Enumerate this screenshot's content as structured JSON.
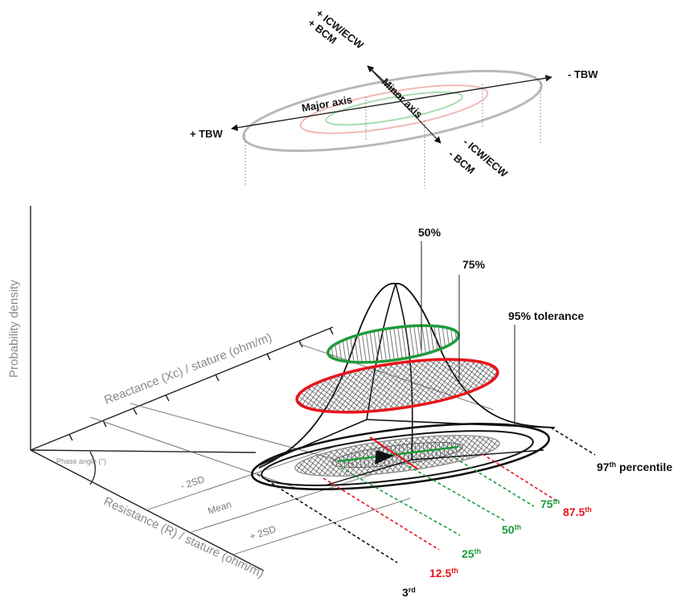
{
  "top_ellipse": {
    "plus_icw": "+ ICW/ECW",
    "plus_bcm": "+ BCM",
    "minus_tbw": "- TBW",
    "plus_tbw": "+ TBW",
    "major_axis": "Major  axis",
    "minor_axis": "Minor  axis",
    "minus_icw": "- ICW/ECW",
    "minus_bcm": "- BCM"
  },
  "axes": {
    "y_label": "Probability density",
    "xc_label": "Reactance (Xc) / stature (ohm/m)",
    "r_label": "Resistance (R) / stature (ohm/m)",
    "phase_angle": "Phase angle (°)",
    "minus_2sd": "- 2SD",
    "mean": "Mean",
    "plus_2sd": "+ 2SD"
  },
  "levels": {
    "p50": "50%",
    "p75": "75%",
    "p95": "95% tolerance"
  },
  "percentiles": {
    "p97": {
      "num": "97",
      "sup": "th",
      "suffix": " percentile"
    },
    "p87": {
      "num": "87.5",
      "sup": "th"
    },
    "p75": {
      "num": "75",
      "sup": "th"
    },
    "p50": {
      "num": "50",
      "sup": "th"
    },
    "p25": {
      "num": "25",
      "sup": "th"
    },
    "p12": {
      "num": "12.5",
      "sup": "th"
    },
    "p3": {
      "num": "3",
      "sup": "rd"
    }
  },
  "colors": {
    "green": "#1e9b3a",
    "red": "#e8141b",
    "pink": "#f4b8b8",
    "light_green": "#a8dcb0",
    "gray": "#b0b0b0",
    "dark": "#111111"
  }
}
